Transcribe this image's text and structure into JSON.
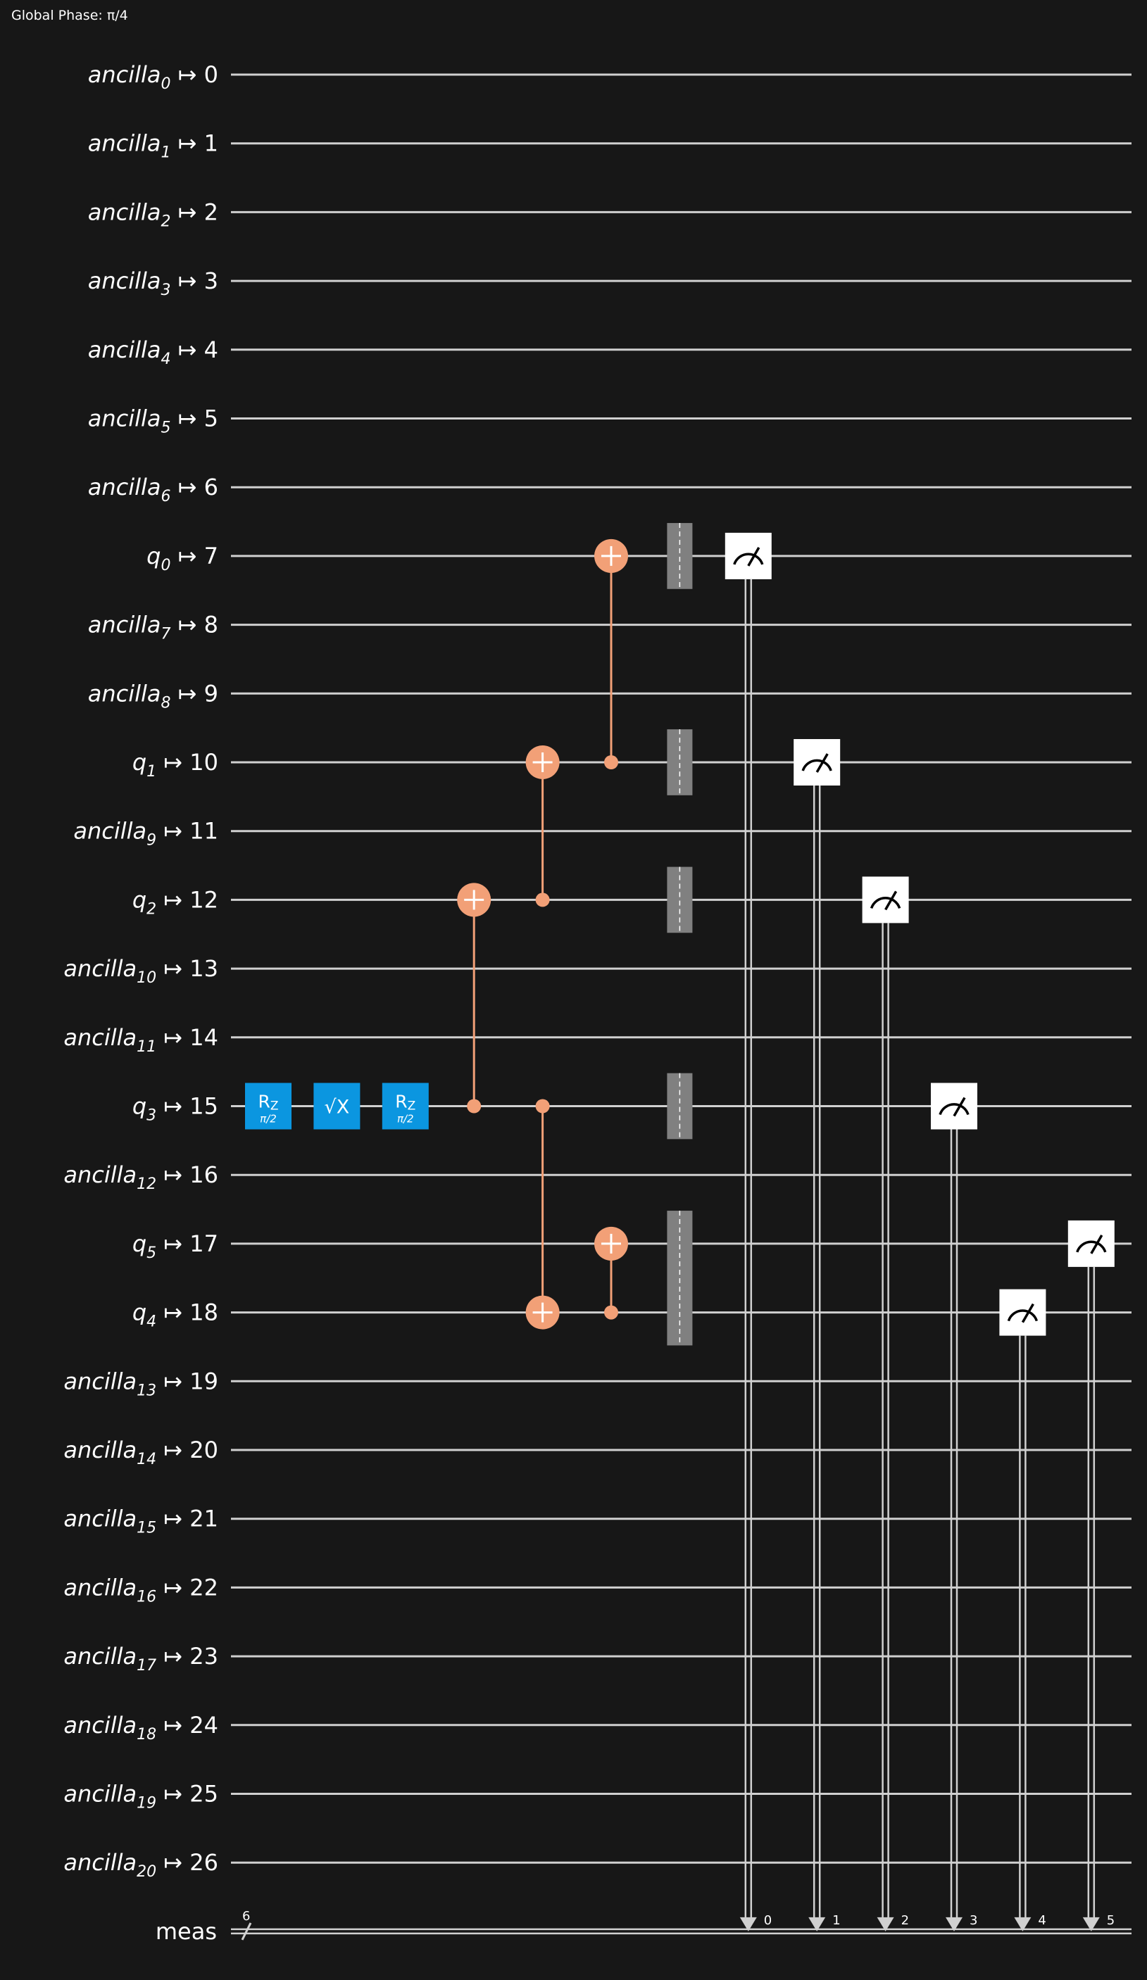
{
  "global_phase": "Global Phase: π/4",
  "colors": {
    "background": "#171717",
    "wire": "#d0d0d0",
    "cx": "#f2a077",
    "single_gate": "#0b96e0",
    "barrier": "#808080",
    "measure_box": "#ffffff"
  },
  "qubits": [
    {
      "name": "ancilla",
      "sub": "0",
      "index": "0"
    },
    {
      "name": "ancilla",
      "sub": "1",
      "index": "1"
    },
    {
      "name": "ancilla",
      "sub": "2",
      "index": "2"
    },
    {
      "name": "ancilla",
      "sub": "3",
      "index": "3"
    },
    {
      "name": "ancilla",
      "sub": "4",
      "index": "4"
    },
    {
      "name": "ancilla",
      "sub": "5",
      "index": "5"
    },
    {
      "name": "ancilla",
      "sub": "6",
      "index": "6"
    },
    {
      "name": "q",
      "sub": "0",
      "index": "7"
    },
    {
      "name": "ancilla",
      "sub": "7",
      "index": "8"
    },
    {
      "name": "ancilla",
      "sub": "8",
      "index": "9"
    },
    {
      "name": "q",
      "sub": "1",
      "index": "10"
    },
    {
      "name": "ancilla",
      "sub": "9",
      "index": "11"
    },
    {
      "name": "q",
      "sub": "2",
      "index": "12"
    },
    {
      "name": "ancilla",
      "sub": "10",
      "index": "13"
    },
    {
      "name": "ancilla",
      "sub": "11",
      "index": "14"
    },
    {
      "name": "q",
      "sub": "3",
      "index": "15"
    },
    {
      "name": "ancilla",
      "sub": "12",
      "index": "16"
    },
    {
      "name": "q",
      "sub": "5",
      "index": "17"
    },
    {
      "name": "q",
      "sub": "4",
      "index": "18"
    },
    {
      "name": "ancilla",
      "sub": "13",
      "index": "19"
    },
    {
      "name": "ancilla",
      "sub": "14",
      "index": "20"
    },
    {
      "name": "ancilla",
      "sub": "15",
      "index": "21"
    },
    {
      "name": "ancilla",
      "sub": "16",
      "index": "22"
    },
    {
      "name": "ancilla",
      "sub": "17",
      "index": "23"
    },
    {
      "name": "ancilla",
      "sub": "18",
      "index": "24"
    },
    {
      "name": "ancilla",
      "sub": "19",
      "index": "25"
    },
    {
      "name": "ancilla",
      "sub": "20",
      "index": "26"
    }
  ],
  "classical": {
    "label": "meas",
    "width": "6"
  },
  "single_gates": [
    {
      "kind": "rz",
      "label": "R",
      "label_sub": "Z",
      "param": "π/2",
      "row": 15,
      "col": 0
    },
    {
      "kind": "sx",
      "label": "√X",
      "row": 15,
      "col": 1
    },
    {
      "kind": "rz",
      "label": "R",
      "label_sub": "Z",
      "param": "π/2",
      "row": 15,
      "col": 2
    }
  ],
  "cx_gates": [
    {
      "control": 15,
      "target": 12,
      "col": 3
    },
    {
      "control": 12,
      "target": 10,
      "col": 4
    },
    {
      "control": 15,
      "target": 18,
      "col": 4
    },
    {
      "control": 10,
      "target": 7,
      "col": 5
    },
    {
      "control": 18,
      "target": 17,
      "col": 5
    }
  ],
  "barriers": [
    {
      "from": 7,
      "to": 7
    },
    {
      "from": 10,
      "to": 10
    },
    {
      "from": 12,
      "to": 12
    },
    {
      "from": 15,
      "to": 15
    },
    {
      "from": 17,
      "to": 18
    }
  ],
  "measurements": [
    {
      "row": 7,
      "bit": "0",
      "col": 7
    },
    {
      "row": 10,
      "bit": "1",
      "col": 8
    },
    {
      "row": 12,
      "bit": "2",
      "col": 9
    },
    {
      "row": 15,
      "bit": "3",
      "col": 10
    },
    {
      "row": 18,
      "bit": "4",
      "col": 11
    },
    {
      "row": 17,
      "bit": "5",
      "col": 12
    }
  ]
}
